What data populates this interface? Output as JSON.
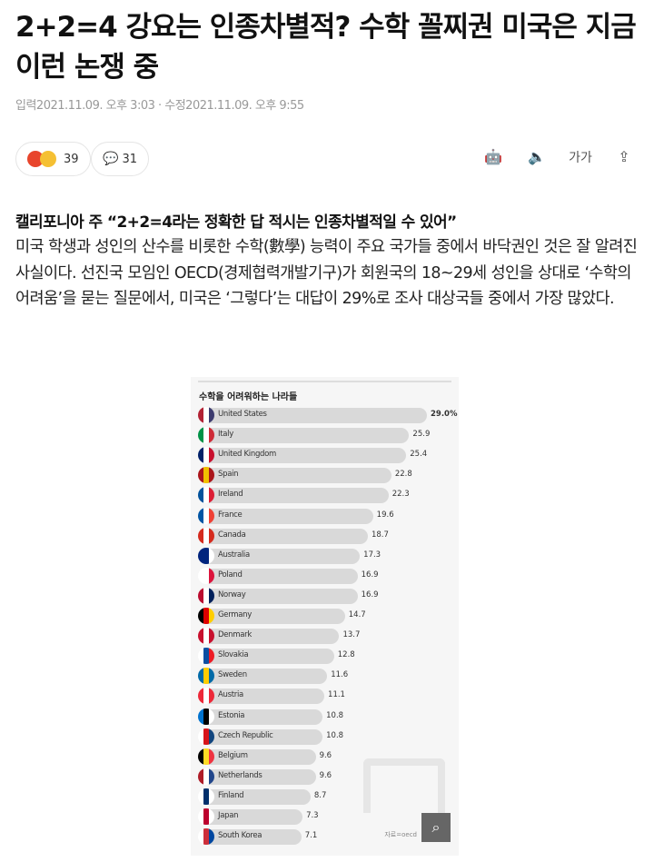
{
  "article": {
    "title": "2+2=4 강요는 인종차별적? 수학 꼴찌권 미국은 지금 이런 논쟁 중",
    "meta": "입력2021.11.09. 오후 3:03 · 수정2021.11.09. 오후 9:55",
    "reaction_count": "39",
    "comment_count": "31",
    "tools": [
      {
        "icon": "robot-summary-icon",
        "label": "🤖"
      },
      {
        "icon": "speaker-icon",
        "label": "🔈"
      },
      {
        "icon": "font-size-icon",
        "label": "가가"
      },
      {
        "icon": "share-icon",
        "label": "⇪"
      }
    ],
    "subheading": "캘리포니아 주 “2+2=4라는 정확한 답 적시는 인종차별적일 수 있어”",
    "body": "미국 학생과 성인의 산수를 비롯한 수학(數學) 능력이 주요 국가들 중에서 바닥권인 것은 잘 알려진 사실이다. 선진국 모임인 OECD(경제협력개발기구)가 회원국의 18~29세 성인을 상대로 ‘수학의 어려움’을 묻는 질문에서, 미국은 ‘그렇다’는 대답이 29%로 조사 대상국들 중에서 가장 많았다."
  },
  "chart_data": {
    "type": "bar",
    "orientation": "horizontal",
    "title": "수학을 어려워하는 나라들",
    "source": "자료=oecd",
    "categories": [
      "United States",
      "Italy",
      "United Kingdom",
      "Spain",
      "Ireland",
      "France",
      "Canada",
      "Australia",
      "Poland",
      "Norway",
      "Germany",
      "Denmark",
      "Slovakia",
      "Sweden",
      "Austria",
      "Estonia",
      "Czech Republic",
      "Belgium",
      "Netherlands",
      "Finland",
      "Japan",
      "South Korea"
    ],
    "values": [
      29.0,
      25.9,
      25.4,
      22.8,
      22.3,
      19.6,
      18.7,
      17.3,
      16.9,
      16.9,
      14.7,
      13.7,
      12.8,
      11.6,
      11.1,
      10.8,
      10.8,
      9.6,
      9.6,
      8.7,
      7.3,
      7.1
    ],
    "value_labels": [
      "29.0%",
      "25.9",
      "25.4",
      "22.8",
      "22.3",
      "19.6",
      "18.7",
      "17.3",
      "16.9",
      "16.9",
      "14.7",
      "13.7",
      "12.8",
      "11.6",
      "11.1",
      "10.8",
      "10.8",
      "9.6",
      "9.6",
      "8.7",
      "7.3",
      "7.1"
    ],
    "flag_colors": [
      [
        "#b22234",
        "#fff",
        "#3c3b6e"
      ],
      [
        "#009246",
        "#fff",
        "#ce2b37"
      ],
      [
        "#012169",
        "#fff",
        "#c8102e"
      ],
      [
        "#aa151b",
        "#f1bf00",
        "#aa151b"
      ],
      [
        "#02529c",
        "#fff",
        "#dc1e35"
      ],
      [
        "#0055a4",
        "#fff",
        "#ef4135"
      ],
      [
        "#d52b1e",
        "#fff",
        "#d52b1e"
      ],
      [
        "#00247d",
        "#00247d",
        "#fff"
      ],
      [
        "#fff",
        "#fff",
        "#dc143c"
      ],
      [
        "#ba0c2f",
        "#fff",
        "#00205b"
      ],
      [
        "#000",
        "#dd0000",
        "#ffce00"
      ],
      [
        "#c8102e",
        "#fff",
        "#c8102e"
      ],
      [
        "#fff",
        "#0b4ea2",
        "#ee1c25"
      ],
      [
        "#006aa7",
        "#fecc00",
        "#006aa7"
      ],
      [
        "#ed2939",
        "#fff",
        "#ed2939"
      ],
      [
        "#0072ce",
        "#000",
        "#fff"
      ],
      [
        "#fff",
        "#d7141a",
        "#11457e"
      ],
      [
        "#000",
        "#fdda24",
        "#ef3340"
      ],
      [
        "#ae1c28",
        "#fff",
        "#21468b"
      ],
      [
        "#fff",
        "#002f6c",
        "#fff"
      ],
      [
        "#fff",
        "#bc002d",
        "#fff"
      ],
      [
        "#fff",
        "#cd2e3a",
        "#0047a0"
      ]
    ],
    "bar_color": "#d9d9d9"
  }
}
